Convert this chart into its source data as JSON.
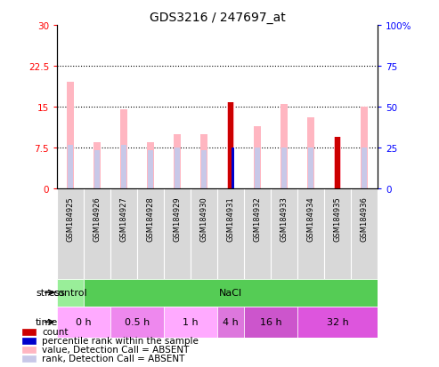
{
  "title": "GDS3216 / 247697_at",
  "samples": [
    "GSM184925",
    "GSM184926",
    "GSM184927",
    "GSM184928",
    "GSM184929",
    "GSM184930",
    "GSM184931",
    "GSM184932",
    "GSM184933",
    "GSM184934",
    "GSM184935",
    "GSM184936"
  ],
  "value_bars": [
    19.5,
    8.5,
    14.5,
    8.5,
    10.0,
    10.0,
    15.8,
    11.5,
    15.5,
    13.0,
    9.5,
    15.0
  ],
  "rank_bars": [
    8.0,
    7.0,
    8.0,
    7.0,
    7.5,
    7.0,
    7.5,
    7.5,
    7.5,
    7.5,
    7.5,
    7.5
  ],
  "count_bars": [
    null,
    null,
    null,
    null,
    null,
    null,
    15.8,
    null,
    null,
    null,
    9.5,
    null
  ],
  "percentile_bars": [
    null,
    null,
    null,
    null,
    null,
    null,
    7.5,
    null,
    null,
    null,
    null,
    null
  ],
  "ylim_left": [
    0,
    30
  ],
  "ylim_right": [
    0,
    100
  ],
  "yticks_left": [
    0,
    7.5,
    15,
    22.5,
    30
  ],
  "yticks_right": [
    0,
    25,
    50,
    75,
    100
  ],
  "ytick_labels_left": [
    "0",
    "7.5",
    "15",
    "22.5",
    "30"
  ],
  "ytick_labels_right": [
    "0",
    "25",
    "50",
    "75",
    "100%"
  ],
  "hlines": [
    7.5,
    15.0,
    22.5
  ],
  "color_value": "#FFB6C1",
  "color_rank": "#C8C8E8",
  "color_count": "#CC0000",
  "color_percentile": "#0000CC",
  "stress_row": [
    {
      "label": "control",
      "start": 0,
      "end": 1,
      "color": "#99EE99"
    },
    {
      "label": "NaCl",
      "start": 1,
      "end": 12,
      "color": "#55CC55"
    }
  ],
  "time_row": [
    {
      "label": "0 h",
      "start": 0,
      "end": 2,
      "color": "#FFAAFF"
    },
    {
      "label": "0.5 h",
      "start": 2,
      "end": 4,
      "color": "#EE88EE"
    },
    {
      "label": "1 h",
      "start": 4,
      "end": 6,
      "color": "#FFAAFF"
    },
    {
      "label": "4 h",
      "start": 6,
      "end": 7,
      "color": "#DD77DD"
    },
    {
      "label": "16 h",
      "start": 7,
      "end": 9,
      "color": "#CC55CC"
    },
    {
      "label": "32 h",
      "start": 9,
      "end": 12,
      "color": "#DD55DD"
    }
  ],
  "stress_label": "stress",
  "time_label": "time",
  "legend_items": [
    {
      "color": "#CC0000",
      "label": "count"
    },
    {
      "color": "#0000CC",
      "label": "percentile rank within the sample"
    },
    {
      "color": "#FFB6C1",
      "label": "value, Detection Call = ABSENT"
    },
    {
      "color": "#C8C8E8",
      "label": "rank, Detection Call = ABSENT"
    }
  ],
  "pink_bar_width": 0.25,
  "blue_bar_width": 0.18,
  "red_bar_width": 0.18,
  "dkblue_bar_width": 0.1
}
